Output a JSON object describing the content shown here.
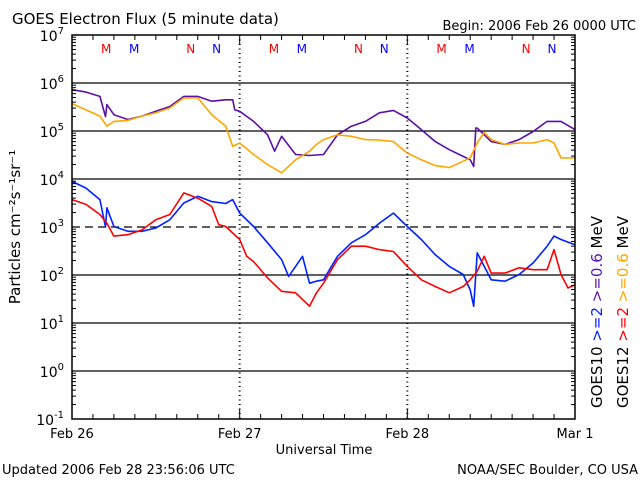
{
  "chart_data": {
    "type": "line",
    "title": "GOES Electron Flux (5 minute data)",
    "begin_label": "Begin: 2006 Feb 26 0000 UTC",
    "xlabel": "Universal Time",
    "ylabel": "Particles cm⁻²s⁻¹sr⁻¹",
    "y_scale": "log",
    "ylim": [
      0.1,
      10000000
    ],
    "xlim_hours": [
      0,
      72
    ],
    "x_ticks": [
      {
        "hour": 0,
        "label": "Feb 26"
      },
      {
        "hour": 24,
        "label": "Feb 27"
      },
      {
        "hour": 48,
        "label": "Feb 28"
      },
      {
        "hour": 72,
        "label": "Mar 1"
      }
    ],
    "y_ticks": [
      {
        "log": 7,
        "base": "10",
        "exp": "7"
      },
      {
        "log": 6,
        "base": "10",
        "exp": "6"
      },
      {
        "log": 5,
        "base": "10",
        "exp": "5"
      },
      {
        "log": 4,
        "base": "10",
        "exp": "4"
      },
      {
        "log": 3,
        "base": "10",
        "exp": "3"
      },
      {
        "log": 2,
        "base": "10",
        "exp": "2"
      },
      {
        "log": 1,
        "base": "10",
        "exp": "1"
      },
      {
        "log": 0,
        "base": "10",
        "exp": "0"
      },
      {
        "log": -1,
        "base": "10",
        "exp": "-1"
      }
    ],
    "solid_gridlines_log": [
      6,
      5,
      4,
      2,
      1,
      0
    ],
    "dashed_threshold_log": 3,
    "markers": [
      {
        "label": "M",
        "color": "#ff0000",
        "hours": [
          4.9,
          28.9,
          52.9
        ]
      },
      {
        "label": "M",
        "color": "#0000ff",
        "hours": [
          8.9,
          32.9,
          56.9
        ]
      },
      {
        "label": "N",
        "color": "#ff0000",
        "hours": [
          17.0,
          41.0,
          65.0
        ]
      },
      {
        "label": "N",
        "color": "#0000ff",
        "hours": [
          20.7,
          44.7,
          68.7
        ]
      }
    ],
    "legend": {
      "placement": "right",
      "unit": "MeV",
      "rows": [
        {
          "satellite": "GOES10",
          "ch1": ">=2",
          "ch1_color": "#0022ff",
          "ch2": ">=0.6",
          "ch2_color": "#5a10a8"
        },
        {
          "satellite": "GOES12",
          "ch1": ">=2",
          "ch1_color": "#ff0000",
          "ch2": ">=0.6",
          "ch2_color": "#ffa500"
        }
      ]
    },
    "series_units": "points are [hours since begin, log10(flux)]",
    "series": [
      {
        "name": "GOES10 >=0.6 MeV",
        "color": "#5a10a8",
        "points": [
          [
            0,
            5.86
          ],
          [
            2,
            5.81
          ],
          [
            4,
            5.72
          ],
          [
            4.8,
            5.3
          ],
          [
            5,
            5.55
          ],
          [
            6,
            5.34
          ],
          [
            8,
            5.24
          ],
          [
            10,
            5.31
          ],
          [
            12,
            5.41
          ],
          [
            14,
            5.51
          ],
          [
            16,
            5.72
          ],
          [
            18,
            5.72
          ],
          [
            20,
            5.62
          ],
          [
            22,
            5.65
          ],
          [
            23,
            5.65
          ],
          [
            23.3,
            5.44
          ],
          [
            24,
            5.41
          ],
          [
            26,
            5.2
          ],
          [
            28,
            4.92
          ],
          [
            29,
            4.58
          ],
          [
            30,
            4.89
          ],
          [
            32,
            4.51
          ],
          [
            34,
            4.49
          ],
          [
            36,
            4.51
          ],
          [
            38,
            4.92
          ],
          [
            40,
            5.1
          ],
          [
            42,
            5.2
          ],
          [
            44,
            5.38
          ],
          [
            46,
            5.43
          ],
          [
            48,
            5.27
          ],
          [
            50,
            5.03
          ],
          [
            52,
            4.78
          ],
          [
            54,
            4.61
          ],
          [
            56,
            4.47
          ],
          [
            57,
            4.4
          ],
          [
            57.5,
            4.26
          ],
          [
            57.8,
            5.06
          ],
          [
            58,
            5.06
          ],
          [
            60,
            4.78
          ],
          [
            62,
            4.72
          ],
          [
            64,
            4.82
          ],
          [
            66,
            4.99
          ],
          [
            68,
            5.2
          ],
          [
            70,
            5.2
          ],
          [
            72,
            5.03
          ]
        ]
      },
      {
        "name": "GOES12 >=0.6 MeV",
        "color": "#ffa500",
        "points": [
          [
            0,
            5.57
          ],
          [
            2,
            5.44
          ],
          [
            4,
            5.31
          ],
          [
            5,
            5.1
          ],
          [
            6,
            5.2
          ],
          [
            8,
            5.22
          ],
          [
            10,
            5.31
          ],
          [
            12,
            5.38
          ],
          [
            14,
            5.48
          ],
          [
            16,
            5.69
          ],
          [
            18,
            5.69
          ],
          [
            20,
            5.34
          ],
          [
            22,
            5.1
          ],
          [
            23,
            4.68
          ],
          [
            24,
            4.75
          ],
          [
            26,
            4.51
          ],
          [
            28,
            4.3
          ],
          [
            30,
            4.13
          ],
          [
            32,
            4.4
          ],
          [
            34,
            4.58
          ],
          [
            35,
            4.72
          ],
          [
            36,
            4.82
          ],
          [
            38,
            4.92
          ],
          [
            40,
            4.89
          ],
          [
            42,
            4.82
          ],
          [
            44,
            4.81
          ],
          [
            46,
            4.78
          ],
          [
            48,
            4.54
          ],
          [
            50,
            4.4
          ],
          [
            52,
            4.28
          ],
          [
            54,
            4.24
          ],
          [
            56,
            4.37
          ],
          [
            57,
            4.44
          ],
          [
            58,
            4.75
          ],
          [
            59,
            4.97
          ],
          [
            60,
            4.82
          ],
          [
            62,
            4.72
          ],
          [
            64,
            4.75
          ],
          [
            66,
            4.75
          ],
          [
            68,
            4.82
          ],
          [
            69,
            4.75
          ],
          [
            70,
            4.44
          ],
          [
            72,
            4.44
          ]
        ]
      },
      {
        "name": "GOES10 >=2 MeV",
        "color": "#0022ff",
        "points": [
          [
            0,
            3.95
          ],
          [
            2,
            3.81
          ],
          [
            4,
            3.57
          ],
          [
            4.8,
            3.0
          ],
          [
            5,
            3.4
          ],
          [
            6,
            3.01
          ],
          [
            8,
            2.91
          ],
          [
            10,
            2.91
          ],
          [
            12,
            2.98
          ],
          [
            14,
            3.15
          ],
          [
            16,
            3.5
          ],
          [
            18,
            3.64
          ],
          [
            20,
            3.53
          ],
          [
            22,
            3.49
          ],
          [
            23,
            3.57
          ],
          [
            24,
            3.29
          ],
          [
            26,
            3.01
          ],
          [
            28,
            2.67
          ],
          [
            30,
            2.32
          ],
          [
            31,
            1.97
          ],
          [
            32,
            2.18
          ],
          [
            33,
            2.39
          ],
          [
            34,
            1.83
          ],
          [
            35,
            1.87
          ],
          [
            36,
            1.9
          ],
          [
            38,
            2.39
          ],
          [
            40,
            2.67
          ],
          [
            42,
            2.84
          ],
          [
            44,
            3.08
          ],
          [
            46,
            3.29
          ],
          [
            48,
            3.01
          ],
          [
            50,
            2.74
          ],
          [
            52,
            2.42
          ],
          [
            54,
            2.18
          ],
          [
            56,
            2.01
          ],
          [
            57,
            1.69
          ],
          [
            57.5,
            1.35
          ],
          [
            58,
            2.46
          ],
          [
            60,
            1.9
          ],
          [
            62,
            1.87
          ],
          [
            64,
            2.01
          ],
          [
            66,
            2.25
          ],
          [
            68,
            2.6
          ],
          [
            69,
            2.81
          ],
          [
            70,
            2.74
          ],
          [
            72,
            2.63
          ]
        ]
      },
      {
        "name": "GOES12 >=2 MeV",
        "color": "#ff0000",
        "points": [
          [
            0,
            3.57
          ],
          [
            2,
            3.47
          ],
          [
            4,
            3.26
          ],
          [
            5,
            3.08
          ],
          [
            6,
            2.81
          ],
          [
            8,
            2.84
          ],
          [
            10,
            2.94
          ],
          [
            12,
            3.15
          ],
          [
            14,
            3.26
          ],
          [
            16,
            3.71
          ],
          [
            18,
            3.6
          ],
          [
            20,
            3.43
          ],
          [
            21,
            3.05
          ],
          [
            22,
            3.01
          ],
          [
            24,
            2.74
          ],
          [
            25,
            2.39
          ],
          [
            26,
            2.28
          ],
          [
            28,
            1.94
          ],
          [
            30,
            1.66
          ],
          [
            32,
            1.63
          ],
          [
            34,
            1.35
          ],
          [
            35,
            1.63
          ],
          [
            36,
            1.83
          ],
          [
            38,
            2.32
          ],
          [
            40,
            2.6
          ],
          [
            42,
            2.6
          ],
          [
            44,
            2.53
          ],
          [
            46,
            2.49
          ],
          [
            48,
            2.18
          ],
          [
            50,
            1.9
          ],
          [
            52,
            1.76
          ],
          [
            54,
            1.63
          ],
          [
            56,
            1.76
          ],
          [
            57,
            1.9
          ],
          [
            58,
            2.08
          ],
          [
            59,
            2.39
          ],
          [
            60,
            2.04
          ],
          [
            62,
            2.04
          ],
          [
            64,
            2.15
          ],
          [
            66,
            2.11
          ],
          [
            68,
            2.11
          ],
          [
            69,
            2.53
          ],
          [
            70,
            2.01
          ],
          [
            71,
            1.73
          ],
          [
            72,
            1.8
          ]
        ]
      }
    ]
  },
  "footer": {
    "updated": "Updated 2006 Feb 28 23:56:06 UTC",
    "credit": "NOAA/SEC Boulder, CO USA"
  }
}
